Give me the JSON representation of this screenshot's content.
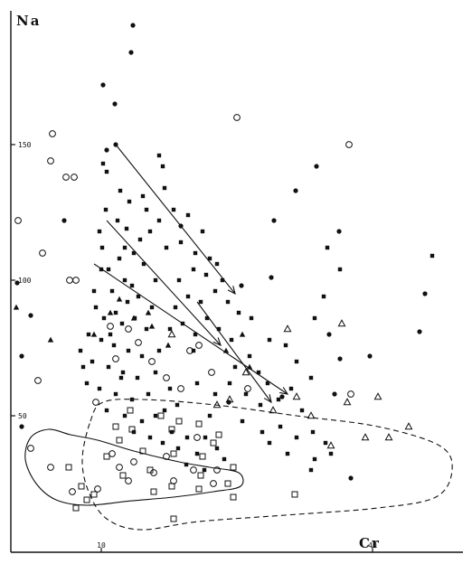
{
  "chart_data": {
    "type": "scatter",
    "title": "",
    "xlabel": "Cr",
    "ylabel": "Na",
    "xlim": [
      0,
      50
    ],
    "ylim": [
      0,
      200
    ],
    "x_ticks": [
      {
        "value": 10,
        "label": "10"
      },
      {
        "value": 40,
        "label": "40"
      }
    ],
    "y_ticks": [
      {
        "value": 50,
        "label": "50"
      },
      {
        "value": 100,
        "label": "100"
      },
      {
        "value": 150,
        "label": "150"
      }
    ],
    "grid": false,
    "legend": "none",
    "series": [
      {
        "marker": "filled-circle",
        "color": "#111111",
        "points": [
          [
            13.5,
            194
          ],
          [
            13.3,
            184
          ],
          [
            10.2,
            172
          ],
          [
            11.5,
            165
          ],
          [
            11.6,
            150
          ],
          [
            10.6,
            148
          ],
          [
            5.9,
            122
          ],
          [
            18.8,
            120
          ],
          [
            29.1,
            122
          ],
          [
            36.3,
            118
          ],
          [
            31.5,
            133
          ],
          [
            33.8,
            142
          ],
          [
            25.5,
            98
          ],
          [
            28.8,
            101
          ],
          [
            2.2,
            87
          ],
          [
            0.7,
            99
          ],
          [
            1.2,
            72
          ],
          [
            1.2,
            46
          ],
          [
            39.7,
            72
          ],
          [
            36.4,
            71
          ],
          [
            35.8,
            58
          ],
          [
            24.1,
            55
          ],
          [
            37.6,
            27
          ],
          [
            45.2,
            81
          ],
          [
            30.0,
            57
          ],
          [
            35.2,
            80
          ],
          [
            45.8,
            95
          ]
        ]
      },
      {
        "marker": "filled-square",
        "color": "#111111",
        "points": [
          [
            10.2,
            143
          ],
          [
            10.6,
            140
          ],
          [
            12.1,
            133
          ],
          [
            13.1,
            129
          ],
          [
            14.6,
            131
          ],
          [
            15.0,
            126
          ],
          [
            10.5,
            126
          ],
          [
            11.8,
            122
          ],
          [
            9.8,
            118
          ],
          [
            12.8,
            119
          ],
          [
            14.3,
            115
          ],
          [
            15.4,
            118
          ],
          [
            10.1,
            112
          ],
          [
            12.0,
            108
          ],
          [
            13.6,
            110
          ],
          [
            14.7,
            106
          ],
          [
            10.8,
            104
          ],
          [
            12.6,
            100
          ],
          [
            13.4,
            98
          ],
          [
            16.0,
            100
          ],
          [
            11.2,
            96
          ],
          [
            12.9,
            92
          ],
          [
            14.1,
            94
          ],
          [
            15.6,
            90
          ],
          [
            9.4,
            90
          ],
          [
            10.3,
            86
          ],
          [
            12.3,
            84
          ],
          [
            13.7,
            86
          ],
          [
            15.0,
            82
          ],
          [
            8.6,
            80
          ],
          [
            10.0,
            78
          ],
          [
            11.4,
            76
          ],
          [
            13.0,
            74
          ],
          [
            14.5,
            72
          ],
          [
            16.4,
            74
          ],
          [
            7.7,
            74
          ],
          [
            9.0,
            70
          ],
          [
            10.8,
            68
          ],
          [
            12.4,
            66
          ],
          [
            14.0,
            64
          ],
          [
            16.0,
            66
          ],
          [
            8.4,
            62
          ],
          [
            9.8,
            60
          ],
          [
            11.6,
            58
          ],
          [
            13.4,
            56
          ],
          [
            15.2,
            58
          ],
          [
            17.6,
            60
          ],
          [
            10.6,
            52
          ],
          [
            12.6,
            50
          ],
          [
            14.5,
            48
          ],
          [
            17.0,
            52
          ],
          [
            13.6,
            44
          ],
          [
            15.4,
            42
          ],
          [
            17.8,
            44
          ],
          [
            19.5,
            42
          ],
          [
            21.5,
            42
          ],
          [
            16.8,
            40
          ],
          [
            18.5,
            38
          ],
          [
            20.6,
            36
          ],
          [
            22.8,
            38
          ],
          [
            19.4,
            32
          ],
          [
            21.4,
            30
          ],
          [
            23.6,
            34
          ],
          [
            17.6,
            82
          ],
          [
            19.0,
            84
          ],
          [
            20.4,
            80
          ],
          [
            21.7,
            86
          ],
          [
            23.0,
            82
          ],
          [
            24.4,
            78
          ],
          [
            18.2,
            90
          ],
          [
            19.6,
            94
          ],
          [
            21.0,
            92
          ],
          [
            22.6,
            96
          ],
          [
            24.0,
            92
          ],
          [
            25.2,
            88
          ],
          [
            18.6,
            100
          ],
          [
            20.2,
            104
          ],
          [
            21.6,
            102
          ],
          [
            23.4,
            100
          ],
          [
            17.2,
            112
          ],
          [
            18.8,
            114
          ],
          [
            20.4,
            110
          ],
          [
            22.0,
            108
          ],
          [
            16.4,
            122
          ],
          [
            18.0,
            126
          ],
          [
            19.6,
            124
          ],
          [
            21.2,
            118
          ],
          [
            17.0,
            134
          ],
          [
            16.8,
            142
          ],
          [
            16.4,
            146
          ],
          [
            22.8,
            106
          ],
          [
            24.8,
            68
          ],
          [
            26.4,
            72
          ],
          [
            27.4,
            66
          ],
          [
            28.4,
            62
          ],
          [
            29.6,
            56
          ],
          [
            31.0,
            60
          ],
          [
            32.2,
            52
          ],
          [
            33.2,
            64
          ],
          [
            31.6,
            70
          ],
          [
            30.4,
            76
          ],
          [
            33.6,
            86
          ],
          [
            34.6,
            94
          ],
          [
            36.4,
            104
          ],
          [
            35.0,
            112
          ],
          [
            24.2,
            62
          ],
          [
            26.0,
            58
          ],
          [
            27.6,
            54
          ],
          [
            22.6,
            58
          ],
          [
            20.6,
            62
          ],
          [
            22.0,
            50
          ],
          [
            25.6,
            48
          ],
          [
            27.8,
            44
          ],
          [
            29.8,
            46
          ],
          [
            31.6,
            42
          ],
          [
            33.4,
            44
          ],
          [
            34.8,
            40
          ],
          [
            33.6,
            34
          ],
          [
            30.6,
            36
          ],
          [
            28.6,
            40
          ],
          [
            33.2,
            30
          ],
          [
            35.4,
            36
          ],
          [
            46.6,
            109
          ],
          [
            16.0,
            50
          ],
          [
            18.4,
            54
          ],
          [
            11.6,
            88
          ],
          [
            12.2,
            64
          ],
          [
            11.0,
            80
          ],
          [
            20.2,
            74
          ],
          [
            26.6,
            86
          ],
          [
            28.6,
            78
          ],
          [
            9.2,
            96
          ],
          [
            8.0,
            68
          ],
          [
            10.0,
            104
          ],
          [
            12.6,
            112
          ]
        ]
      },
      {
        "marker": "open-circle",
        "color": "#111111",
        "points": [
          [
            42.6,
            208
          ],
          [
            0.8,
            122
          ],
          [
            3.5,
            110
          ],
          [
            4.6,
            154
          ],
          [
            4.4,
            144
          ],
          [
            6.1,
            138
          ],
          [
            7.0,
            138
          ],
          [
            6.5,
            100
          ],
          [
            7.2,
            100
          ],
          [
            3.0,
            63
          ],
          [
            25.0,
            160
          ],
          [
            37.4,
            150
          ],
          [
            11.0,
            83
          ],
          [
            11.6,
            71
          ],
          [
            14.1,
            77
          ],
          [
            15.6,
            70
          ],
          [
            18.8,
            60
          ],
          [
            19.8,
            74
          ],
          [
            20.8,
            76
          ],
          [
            22.2,
            66
          ],
          [
            17.2,
            64
          ],
          [
            9.4,
            55
          ],
          [
            26.2,
            60
          ],
          [
            37.6,
            58
          ],
          [
            13.0,
            82
          ],
          [
            2.2,
            38
          ],
          [
            4.4,
            31
          ],
          [
            6.8,
            22
          ],
          [
            9.6,
            23
          ],
          [
            11.2,
            36
          ],
          [
            13.6,
            33
          ],
          [
            15.8,
            29
          ],
          [
            18.0,
            26
          ],
          [
            20.2,
            30
          ],
          [
            22.4,
            25
          ],
          [
            13.0,
            26
          ],
          [
            17.2,
            35
          ],
          [
            20.6,
            42
          ],
          [
            22.8,
            30
          ],
          [
            12.0,
            31
          ]
        ]
      },
      {
        "marker": "open-square",
        "color": "#111111",
        "points": [
          [
            8.4,
            19
          ],
          [
            7.2,
            16
          ],
          [
            9.2,
            21
          ],
          [
            13.2,
            52
          ],
          [
            16.6,
            50
          ],
          [
            18.6,
            48
          ],
          [
            13.4,
            45
          ],
          [
            17.8,
            45
          ],
          [
            20.8,
            47
          ],
          [
            23.0,
            43
          ],
          [
            12.0,
            41
          ],
          [
            14.6,
            37
          ],
          [
            18.0,
            36
          ],
          [
            21.2,
            35
          ],
          [
            24.6,
            31
          ],
          [
            6.4,
            31
          ],
          [
            12.4,
            28
          ],
          [
            15.4,
            30
          ],
          [
            17.8,
            24
          ],
          [
            20.8,
            23
          ],
          [
            24.0,
            25
          ],
          [
            24.6,
            20
          ],
          [
            18.0,
            12
          ],
          [
            31.4,
            21
          ],
          [
            22.4,
            40
          ],
          [
            7.8,
            24
          ],
          [
            10.6,
            35
          ],
          [
            15.8,
            22
          ],
          [
            11.6,
            46
          ],
          [
            21.0,
            28
          ]
        ]
      },
      {
        "marker": "filled-triangle",
        "color": "#111111",
        "points": [
          [
            0.6,
            90
          ],
          [
            4.4,
            78
          ],
          [
            9.2,
            80
          ],
          [
            11.0,
            88
          ],
          [
            13.6,
            86
          ],
          [
            15.6,
            83
          ],
          [
            17.4,
            76
          ],
          [
            23.8,
            74
          ],
          [
            25.6,
            80
          ],
          [
            15.2,
            88
          ],
          [
            12.0,
            93
          ],
          [
            26.4,
            68
          ]
        ]
      },
      {
        "marker": "open-triangle",
        "color": "#111111",
        "points": [
          [
            17.8,
            80
          ],
          [
            22.8,
            54
          ],
          [
            29.0,
            52
          ],
          [
            31.6,
            57
          ],
          [
            33.2,
            50
          ],
          [
            35.4,
            39
          ],
          [
            39.2,
            42
          ],
          [
            41.8,
            42
          ],
          [
            44.0,
            46
          ],
          [
            37.2,
            55
          ],
          [
            40.6,
            57
          ],
          [
            30.6,
            82
          ],
          [
            36.6,
            84
          ],
          [
            24.2,
            56
          ],
          [
            26.0,
            66
          ]
        ]
      }
    ],
    "trend_arrows": [
      {
        "from": [
          11.6,
          150
        ],
        "to": [
          24.8,
          95
        ]
      },
      {
        "from": [
          10.6,
          122
        ],
        "to": [
          23.2,
          76
        ]
      },
      {
        "from": [
          9.2,
          106
        ],
        "to": [
          30.6,
          58
        ]
      },
      {
        "from": [
          20.6,
          92
        ],
        "to": [
          28.8,
          55
        ]
      }
    ],
    "envelopes": [
      {
        "style": "solid",
        "outline": [
          [
            4.2,
            45
          ],
          [
            6.6,
            43
          ],
          [
            9.6,
            41
          ],
          [
            13.6,
            37
          ],
          [
            18.6,
            33
          ],
          [
            22.0,
            31
          ],
          [
            25.2,
            29
          ],
          [
            25.4,
            24
          ],
          [
            22.4,
            22
          ],
          [
            18.0,
            20
          ],
          [
            13.2,
            18.6
          ],
          [
            8.4,
            17
          ],
          [
            5.0,
            19
          ],
          [
            2.8,
            25
          ],
          [
            1.6,
            34
          ],
          [
            2.2,
            42
          ]
        ]
      },
      {
        "style": "dashed",
        "outline": [
          [
            8.8,
            48
          ],
          [
            10.2,
            55
          ],
          [
            14.6,
            56
          ],
          [
            22.6,
            54
          ],
          [
            31.6,
            50
          ],
          [
            40.6,
            46
          ],
          [
            47.4,
            39
          ],
          [
            48.8,
            30
          ],
          [
            47.0,
            20
          ],
          [
            40.6,
            16
          ],
          [
            31.0,
            13.5
          ],
          [
            20.8,
            11
          ],
          [
            14.4,
            8
          ],
          [
            10.6,
            12
          ],
          [
            8.6,
            22
          ],
          [
            7.9,
            34
          ]
        ]
      }
    ]
  }
}
